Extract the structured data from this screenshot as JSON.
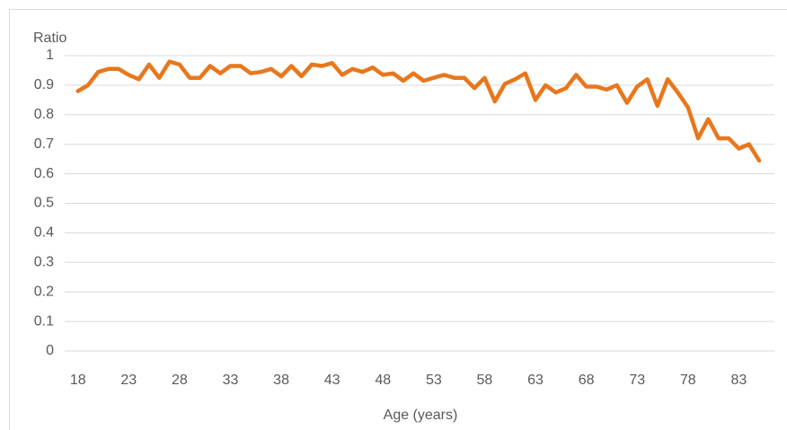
{
  "chart_data": {
    "type": "line",
    "ylabel": "Ratio",
    "xlabel": "Age (years)",
    "x": [
      18,
      19,
      20,
      21,
      22,
      23,
      24,
      25,
      26,
      27,
      28,
      29,
      30,
      31,
      32,
      33,
      34,
      35,
      36,
      37,
      38,
      39,
      40,
      41,
      42,
      43,
      44,
      45,
      46,
      47,
      48,
      49,
      50,
      51,
      52,
      53,
      54,
      55,
      56,
      57,
      58,
      59,
      60,
      61,
      62,
      63,
      64,
      65,
      66,
      67,
      68,
      69,
      70,
      71,
      72,
      73,
      74,
      75,
      76,
      77,
      78,
      79,
      80,
      81,
      82,
      83,
      84,
      85
    ],
    "values": [
      0.88,
      0.9,
      0.945,
      0.955,
      0.955,
      0.935,
      0.92,
      0.97,
      0.925,
      0.98,
      0.97,
      0.925,
      0.925,
      0.965,
      0.94,
      0.965,
      0.965,
      0.94,
      0.945,
      0.955,
      0.93,
      0.965,
      0.93,
      0.97,
      0.965,
      0.975,
      0.935,
      0.955,
      0.945,
      0.96,
      0.935,
      0.94,
      0.915,
      0.94,
      0.915,
      0.925,
      0.935,
      0.925,
      0.925,
      0.89,
      0.925,
      0.845,
      0.905,
      0.92,
      0.94,
      0.85,
      0.9,
      0.875,
      0.89,
      0.935,
      0.895,
      0.895,
      0.885,
      0.9,
      0.84,
      0.895,
      0.92,
      0.83,
      0.92,
      0.875,
      0.825,
      0.72,
      0.785,
      0.72,
      0.72,
      0.685,
      0.7,
      0.645
    ],
    "color": "#e8771c",
    "xlim": [
      16.7,
      86.5
    ],
    "xticks": [
      18,
      23,
      28,
      33,
      38,
      43,
      48,
      53,
      58,
      63,
      68,
      73,
      78,
      83
    ],
    "ylim": [
      0,
      1
    ],
    "yticks": [
      0,
      0.1,
      0.2,
      0.3,
      0.4,
      0.5,
      0.6,
      0.7,
      0.8,
      0.9,
      1
    ],
    "grid": true
  }
}
